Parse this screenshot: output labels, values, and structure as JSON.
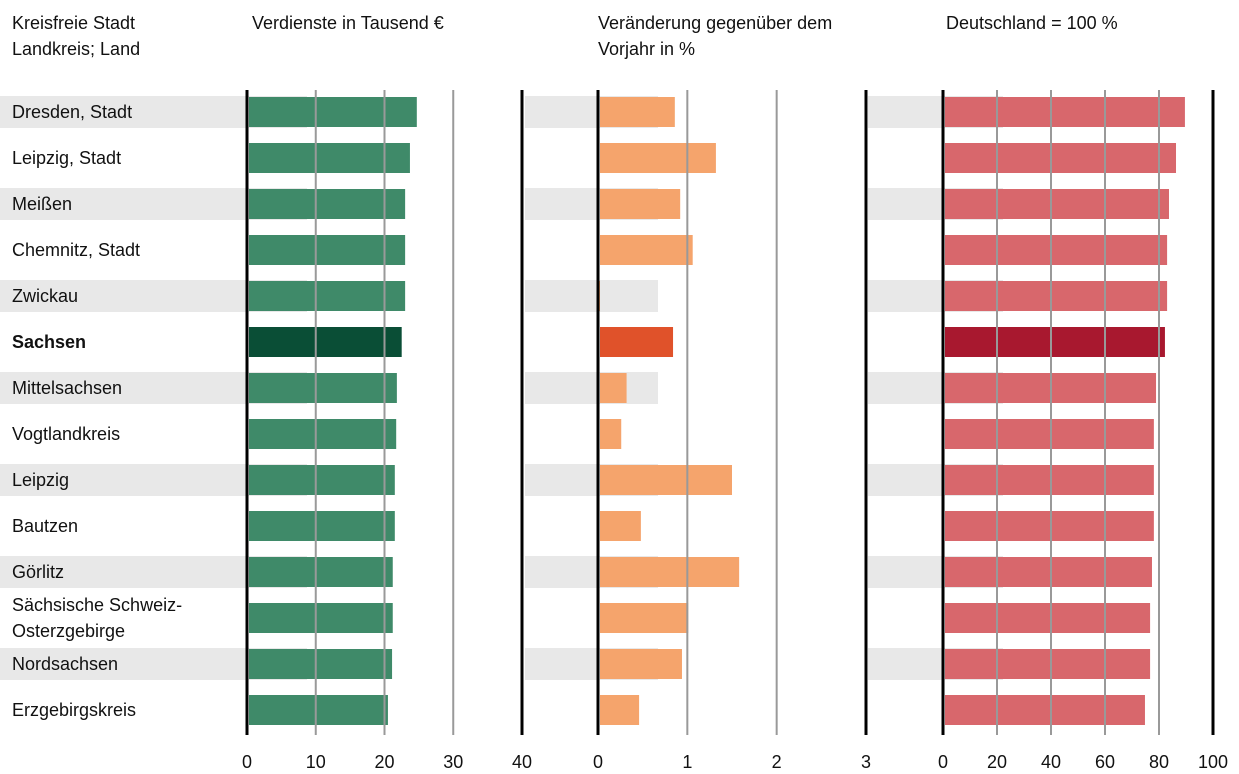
{
  "highlight_index": 5,
  "chart_data": [
    {
      "type": "bar",
      "orientation": "horizontal",
      "category_label": "Kreisfreie Stadt Landkreis; Land",
      "categories": [
        "Dresden, Stadt",
        "Leipzig, Stadt",
        "Meißen",
        "Chemnitz, Stadt",
        "Zwickau",
        "Sachsen",
        "Mittelsachsen",
        "Vogtlandkreis",
        "Leipzig",
        "Bautzen",
        "Görlitz",
        "Sächsische Schweiz-Osterzgebirge",
        "Nordsachsen",
        "Erzgebirgskreis"
      ],
      "title": "Verdienste in Tausend €",
      "values": [
        24.7,
        23.7,
        23.0,
        23.0,
        23.0,
        22.5,
        21.8,
        21.7,
        21.5,
        21.5,
        21.2,
        21.2,
        21.1,
        20.5
      ],
      "color": "#3f8a69",
      "highlight_color": "#0a4e36",
      "xlim": [
        0,
        40
      ],
      "xticks": [
        0,
        10,
        20,
        30,
        40
      ]
    },
    {
      "type": "bar",
      "orientation": "horizontal",
      "title": "Veränderung gegenüber dem Vorjahr in %",
      "values": [
        0.86,
        1.32,
        0.92,
        1.06,
        0,
        0.84,
        0.32,
        0.26,
        1.5,
        0.48,
        1.58,
        1.01,
        0.94,
        0.46
      ],
      "color": "#f5a46c",
      "highlight_color": "#e0522a",
      "xlim": [
        0,
        3
      ],
      "xticks": [
        0,
        1,
        2,
        3
      ]
    },
    {
      "type": "bar",
      "orientation": "horizontal",
      "title": "Deutschland = 100 %",
      "values": [
        89.6,
        86.3,
        83.7,
        83.0,
        83.0,
        82.2,
        78.9,
        78.1,
        78.1,
        78.1,
        77.4,
        76.7,
        76.7,
        74.8
      ],
      "color": "#d8676c",
      "highlight_color": "#a8182f",
      "xlim": [
        0,
        100
      ],
      "xticks": [
        0,
        20,
        40,
        60,
        80,
        100
      ]
    }
  ]
}
